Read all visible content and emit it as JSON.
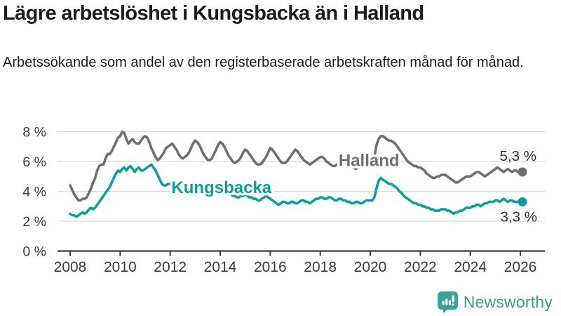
{
  "header": {
    "title": "Lägre arbetslöshet i Kungsbacka än i Halland",
    "subtitle": "Arbetssökande som andel av den registerbaserade arbetskraften månad för månad."
  },
  "chart_data": {
    "type": "line",
    "title": "Lägre arbetslöshet i Kungsbacka än i Halland",
    "xlabel": "",
    "ylabel": "",
    "y_unit": "%",
    "grid": true,
    "legend_position": "inline-labels",
    "xlim": [
      2007.8,
      2026.9
    ],
    "ylim": [
      0,
      8.6
    ],
    "x_start_year": 2008,
    "points_per_year": 12,
    "x_ticks": [
      2008,
      2010,
      2012,
      2014,
      2016,
      2018,
      2020,
      2022,
      2024,
      2026
    ],
    "x_tick_labels": [
      "2008",
      "2010",
      "2012",
      "2014",
      "2016",
      "2018",
      "2020",
      "2022",
      "2024",
      "2026"
    ],
    "y_ticks": [
      0,
      2,
      4,
      6,
      8
    ],
    "y_tick_labels": [
      "0 %",
      "2 %",
      "4 %",
      "6 %",
      "8 %"
    ],
    "series": [
      {
        "name": "Halland",
        "color": "#6e6f72",
        "end_label": "5,3 %",
        "end_label_dx": 20,
        "end_label_dy": -16,
        "label": {
          "text": "Halland",
          "x": 2019.95,
          "y": 6.07
        },
        "values": [
          4.4,
          4.1,
          3.8,
          3.6,
          3.4,
          3.4,
          3.5,
          3.5,
          3.6,
          3.9,
          4.2,
          4.6,
          4.9,
          5.4,
          5.7,
          5.8,
          5.8,
          6.2,
          6.5,
          6.5,
          6.7,
          7.0,
          7.3,
          7.6,
          7.7,
          8.0,
          7.9,
          7.5,
          7.2,
          7.4,
          7.5,
          7.3,
          7.2,
          7.2,
          7.4,
          7.6,
          7.7,
          7.6,
          7.3,
          6.9,
          6.6,
          6.3,
          6.1,
          6.2,
          6.4,
          6.6,
          6.9,
          7.0,
          7.1,
          7.2,
          7.0,
          6.8,
          6.5,
          6.3,
          6.2,
          6.3,
          6.4,
          6.6,
          6.9,
          7.2,
          7.4,
          7.3,
          7.1,
          6.8,
          6.5,
          6.3,
          6.1,
          6.1,
          6.2,
          6.5,
          6.8,
          7.1,
          7.3,
          7.2,
          7.0,
          6.7,
          6.4,
          6.2,
          6.0,
          5.9,
          6.0,
          6.1,
          6.3,
          6.6,
          6.8,
          6.7,
          6.5,
          6.3,
          6.1,
          5.9,
          5.8,
          5.8,
          5.9,
          6.1,
          6.3,
          6.6,
          6.9,
          6.8,
          6.6,
          6.4,
          6.2,
          6.0,
          5.9,
          5.9,
          6.0,
          6.2,
          6.4,
          6.6,
          6.8,
          6.7,
          6.5,
          6.3,
          6.1,
          6.0,
          5.9,
          5.8,
          5.9,
          6.0,
          6.1,
          6.2,
          6.3,
          6.3,
          6.2,
          6.0,
          5.9,
          5.8,
          5.7,
          5.7,
          5.8,
          5.9,
          6.0,
          6.0,
          6.1,
          6.0,
          5.9,
          5.7,
          5.6,
          5.5,
          5.6,
          5.7,
          5.7,
          5.8,
          5.9,
          6.0,
          6.0,
          6.0,
          6.3,
          7.1,
          7.5,
          7.7,
          7.7,
          7.6,
          7.5,
          7.4,
          7.4,
          7.3,
          7.2,
          7.0,
          6.8,
          6.6,
          6.4,
          6.2,
          6.0,
          5.9,
          5.8,
          5.7,
          5.7,
          5.6,
          5.6,
          5.5,
          5.4,
          5.2,
          5.1,
          5.0,
          4.9,
          4.9,
          5.0,
          5.0,
          5.1,
          5.1,
          5.1,
          5.0,
          4.9,
          4.8,
          4.7,
          4.6,
          4.6,
          4.7,
          4.8,
          4.9,
          5.0,
          5.0,
          5.0,
          5.1,
          5.2,
          5.3,
          5.3,
          5.2,
          5.1,
          5.0,
          5.1,
          5.2,
          5.3,
          5.4,
          5.5,
          5.6,
          5.5,
          5.4,
          5.3,
          5.4,
          5.5,
          5.4,
          5.3,
          5.4,
          5.4,
          5.3,
          5.3,
          5.3
        ]
      },
      {
        "name": "Kungsbacka",
        "color": "#0e9e96",
        "end_label": "3,3 %",
        "end_label_dx": 21,
        "end_label_dy": 28,
        "label": {
          "text": "Kungsbacka",
          "x": 2014.05,
          "y": 4.25
        },
        "values": [
          2.5,
          2.4,
          2.4,
          2.3,
          2.4,
          2.5,
          2.6,
          2.5,
          2.6,
          2.8,
          2.9,
          2.8,
          2.9,
          3.1,
          3.3,
          3.5,
          3.7,
          3.9,
          4.1,
          4.3,
          4.6,
          4.9,
          5.2,
          5.4,
          5.3,
          5.5,
          5.6,
          5.4,
          5.6,
          5.7,
          5.5,
          5.3,
          5.5,
          5.6,
          5.4,
          5.4,
          5.5,
          5.6,
          5.7,
          5.8,
          5.6,
          5.4,
          5.1,
          4.8,
          4.5,
          4.4,
          4.4,
          4.5,
          4.5,
          4.5,
          4.4,
          4.4,
          4.3,
          4.3,
          4.4,
          4.4,
          4.3,
          4.3,
          4.4,
          4.4,
          4.5,
          4.4,
          4.4,
          4.3,
          4.2,
          4.2,
          4.1,
          4.1,
          4.0,
          4.0,
          4.1,
          4.1,
          4.1,
          4.0,
          3.9,
          3.9,
          3.8,
          3.8,
          3.7,
          3.7,
          3.6,
          3.6,
          3.7,
          3.7,
          3.8,
          3.7,
          3.6,
          3.6,
          3.5,
          3.5,
          3.4,
          3.4,
          3.5,
          3.6,
          3.7,
          3.6,
          3.5,
          3.4,
          3.3,
          3.2,
          3.1,
          3.2,
          3.3,
          3.3,
          3.2,
          3.2,
          3.3,
          3.3,
          3.2,
          3.2,
          3.3,
          3.4,
          3.4,
          3.3,
          3.3,
          3.2,
          3.3,
          3.4,
          3.5,
          3.5,
          3.6,
          3.6,
          3.5,
          3.5,
          3.6,
          3.6,
          3.5,
          3.4,
          3.4,
          3.5,
          3.5,
          3.4,
          3.4,
          3.3,
          3.3,
          3.2,
          3.2,
          3.3,
          3.3,
          3.2,
          3.2,
          3.3,
          3.4,
          3.4,
          3.4,
          3.4,
          3.6,
          4.2,
          4.7,
          4.9,
          4.8,
          4.7,
          4.6,
          4.5,
          4.5,
          4.4,
          4.3,
          4.2,
          4.0,
          3.9,
          3.7,
          3.6,
          3.5,
          3.4,
          3.3,
          3.2,
          3.2,
          3.1,
          3.1,
          3.0,
          3.0,
          2.9,
          2.9,
          2.8,
          2.8,
          2.7,
          2.7,
          2.7,
          2.8,
          2.8,
          2.8,
          2.7,
          2.7,
          2.6,
          2.5,
          2.6,
          2.6,
          2.7,
          2.7,
          2.8,
          2.9,
          2.9,
          2.9,
          3.0,
          3.0,
          3.1,
          3.1,
          3.0,
          3.1,
          3.2,
          3.2,
          3.3,
          3.3,
          3.3,
          3.4,
          3.4,
          3.3,
          3.4,
          3.5,
          3.4,
          3.3,
          3.4,
          3.4,
          3.3,
          3.3,
          3.3,
          3.3,
          3.3
        ]
      }
    ],
    "colors": {
      "grid": "#d9d9d9",
      "axis": "#3d3d3d",
      "tick_label": "#3b3b3b",
      "value_label": "#2f2f2f"
    }
  },
  "footer": {
    "brand": "Newsworthy",
    "logo_color": "#3aa29b"
  }
}
